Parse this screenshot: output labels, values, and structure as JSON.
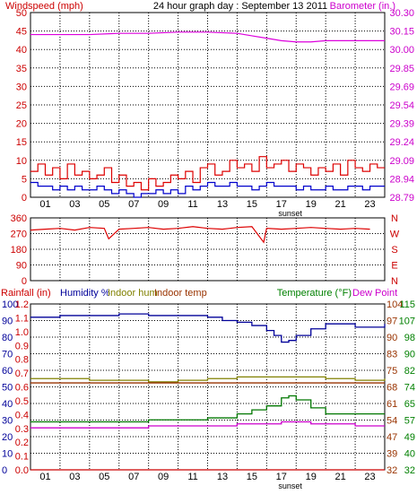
{
  "colors": {
    "wind_axis": "#cc0000",
    "baro_axis": "#cc00cc",
    "wind_speed": "#dd0000",
    "wind_dir": "#dd0000",
    "wind_gust_low": "#0000cc",
    "barometer": "#dd00dd",
    "humidity": "#000099",
    "indoor_hum": "#808000",
    "indoor_temp": "#993300",
    "temperature": "#007700",
    "dew_point": "#cc00cc",
    "rainfall": "#cc0000",
    "grid": "#000000",
    "axis_text_black": "#000000",
    "axis_green": "#008000"
  },
  "chart_data": [
    {
      "type": "line",
      "title": "24 hour graph day : September 13 2011",
      "left_label": "Windspeed (mph)",
      "right_label": "Barometer (in.)",
      "x_ticks": [
        "01",
        "03",
        "05",
        "07",
        "09",
        "11",
        "13",
        "15",
        "17",
        "19",
        "21",
        "23"
      ],
      "x_marker": "sunset",
      "xlim": [
        0,
        24
      ],
      "ylim_left": [
        0,
        50
      ],
      "yticks_left": [
        "50",
        "45",
        "40",
        "35",
        "30",
        "25",
        "20",
        "15",
        "10",
        "5",
        "0"
      ],
      "ylim_right": [
        28.79,
        30.3
      ],
      "yticks_right": [
        "30.30",
        "30.15",
        "30.00",
        "29.85",
        "29.69",
        "29.54",
        "29.39",
        "29.24",
        "29.09",
        "28.94",
        "28.79"
      ],
      "series": [
        {
          "name": "Windspeed",
          "axis": "left",
          "color_key": "wind_speed",
          "x": [
            0,
            0.5,
            1,
            1.5,
            2,
            2.5,
            3,
            3.5,
            4,
            4.5,
            5,
            5.5,
            6,
            6.5,
            7,
            7.5,
            8,
            8.5,
            9,
            9.5,
            10,
            10.5,
            11,
            11.5,
            12,
            12.5,
            13,
            13.5,
            14,
            14.5,
            15,
            15.5,
            16,
            16.5,
            17,
            17.5,
            18,
            18.5,
            19,
            19.5,
            20,
            20.5,
            21,
            21.5,
            22,
            22.5,
            23,
            23.5
          ],
          "y": [
            7,
            9,
            6,
            8,
            5,
            9,
            6,
            7,
            5,
            6,
            8,
            4,
            6,
            3,
            4,
            2,
            5,
            3,
            4,
            6,
            5,
            7,
            4,
            8,
            9,
            6,
            7,
            10,
            8,
            9,
            7,
            11,
            8,
            9,
            10,
            7,
            9,
            8,
            6,
            8,
            7,
            9,
            6,
            10,
            8,
            7,
            9,
            8
          ]
        },
        {
          "name": "Wind (low)",
          "axis": "left",
          "color_key": "wind_gust_low",
          "x": [
            0,
            0.5,
            1,
            1.5,
            2,
            2.5,
            3,
            3.5,
            4,
            4.5,
            5,
            5.5,
            6,
            6.5,
            7,
            7.5,
            8,
            8.5,
            9,
            9.5,
            10,
            10.5,
            11,
            11.5,
            12,
            12.5,
            13,
            13.5,
            14,
            14.5,
            15,
            15.5,
            16,
            16.5,
            17,
            17.5,
            18,
            18.5,
            19,
            19.5,
            20,
            20.5,
            21,
            21.5,
            22,
            22.5,
            23,
            23.5
          ],
          "y": [
            4,
            3,
            3,
            2,
            3,
            2,
            3,
            2,
            2,
            3,
            2,
            1,
            2,
            1,
            0,
            1,
            1,
            2,
            1,
            2,
            1,
            3,
            2,
            3,
            4,
            3,
            3,
            4,
            3,
            3,
            2,
            3,
            4,
            3,
            3,
            3,
            2,
            3,
            2,
            2,
            3,
            2,
            2,
            3,
            3,
            2,
            3,
            3
          ]
        },
        {
          "name": "Barometer",
          "axis": "right",
          "color_key": "barometer",
          "x": [
            0,
            2,
            4,
            6,
            8,
            10,
            12,
            14,
            15,
            16,
            17,
            18,
            19,
            20,
            21,
            22,
            23,
            24
          ],
          "y": [
            30.12,
            30.12,
            30.12,
            30.13,
            30.13,
            30.14,
            30.14,
            30.13,
            30.11,
            30.09,
            30.07,
            30.06,
            30.06,
            30.07,
            30.07,
            30.07,
            30.07,
            30.07
          ]
        }
      ]
    },
    {
      "type": "scatter",
      "ylim": [
        0,
        360
      ],
      "yticks": [
        "360",
        "270",
        "180",
        "90",
        "0"
      ],
      "right_labels": [
        "N",
        "W",
        "S",
        "E",
        "N"
      ],
      "series": [
        {
          "name": "Wind direction",
          "color_key": "wind_dir",
          "x": [
            0,
            1,
            2,
            3,
            4,
            5,
            5.3,
            6,
            7,
            8,
            9,
            10,
            11,
            12,
            13,
            14,
            15,
            15.8,
            16,
            17,
            18,
            19,
            20,
            21,
            22,
            23
          ],
          "y": [
            290,
            295,
            300,
            290,
            305,
            300,
            240,
            295,
            300,
            305,
            295,
            300,
            310,
            300,
            295,
            305,
            310,
            220,
            300,
            295,
            300,
            305,
            300,
            295,
            300,
            295
          ]
        }
      ]
    },
    {
      "type": "line",
      "legend_left": [
        "Rainfall (in)",
        "Humidity %",
        "Indoor hum",
        "Indoor temp"
      ],
      "legend_right": [
        "Temperature (°F)",
        "Dew Point"
      ],
      "x_ticks": [
        "01",
        "03",
        "05",
        "07",
        "09",
        "11",
        "13",
        "15",
        "17",
        "19",
        "21",
        "23"
      ],
      "x_marker": "sunset",
      "xlim": [
        0,
        24
      ],
      "ylim_left_hum": [
        0,
        100
      ],
      "yticks_left_hum": [
        "100",
        "90",
        "80",
        "70",
        "60",
        "50",
        "40",
        "30",
        "20",
        "10",
        "0"
      ],
      "yticks_left_rain": [
        "1.2",
        "1.1",
        "1.0",
        "0.9",
        "0.8",
        "0.7",
        "0.6",
        "0.5",
        "0.4",
        "0.3",
        "0.2",
        "0.1",
        "0.0"
      ],
      "ylim_right_temp": [
        32,
        115
      ],
      "yticks_right_temp": [
        "115",
        "107",
        "98",
        "90",
        "82",
        "74",
        "65",
        "57",
        "49",
        "40",
        "32"
      ],
      "yticks_right_inner": [
        "104",
        "97",
        "90",
        "83",
        "75",
        "68",
        "61",
        "54",
        "47",
        "39",
        "32"
      ],
      "series": [
        {
          "name": "Humidity",
          "axis": "hum",
          "color_key": "humidity",
          "x": [
            0,
            2,
            4,
            6,
            8,
            10,
            12,
            13,
            14,
            15,
            16,
            16.5,
            17,
            17.5,
            18,
            19,
            20,
            21,
            22,
            23,
            24
          ],
          "y": [
            92,
            93,
            93,
            94,
            93,
            93,
            92,
            90,
            89,
            87,
            84,
            81,
            77,
            78,
            81,
            85,
            88,
            88,
            86,
            86,
            88
          ]
        },
        {
          "name": "Indoor hum",
          "axis": "hum",
          "color_key": "indoor_hum",
          "x": [
            0,
            2,
            4,
            6,
            8,
            10,
            12,
            14,
            16,
            18,
            20,
            22,
            24
          ],
          "y": [
            55,
            55,
            54,
            54,
            53,
            54,
            55,
            56,
            56,
            56,
            55,
            54,
            55
          ]
        },
        {
          "name": "Indoor temp",
          "axis": "temp",
          "color_key": "indoor_temp",
          "x": [
            0,
            4,
            8,
            12,
            16,
            20,
            24
          ],
          "y": [
            75.5,
            75.5,
            75.5,
            75.5,
            75.5,
            75.5,
            75.5
          ]
        },
        {
          "name": "Temperature",
          "axis": "temp",
          "color_key": "temperature",
          "x": [
            0,
            2,
            4,
            6,
            8,
            10,
            12,
            14,
            15,
            16,
            17,
            17.5,
            18,
            19,
            20,
            21,
            22,
            23,
            24
          ],
          "y": [
            56,
            56,
            56,
            56,
            57,
            57,
            58,
            60,
            62,
            64,
            68,
            69,
            67,
            63,
            60,
            60,
            60,
            60,
            60
          ]
        },
        {
          "name": "Dew Point",
          "axis": "temp",
          "color_key": "dew_point",
          "x": [
            0,
            2,
            4,
            6,
            8,
            10,
            12,
            14,
            16,
            17,
            18,
            19,
            20,
            22,
            24
          ],
          "y": [
            53,
            53,
            53,
            53,
            54,
            54,
            54,
            55,
            55,
            56,
            56,
            55,
            55,
            54,
            54
          ]
        },
        {
          "name": "Rainfall",
          "axis": "rain",
          "color_key": "rainfall",
          "x": [
            0,
            24
          ],
          "y": [
            0.0,
            0.0
          ]
        }
      ]
    }
  ]
}
